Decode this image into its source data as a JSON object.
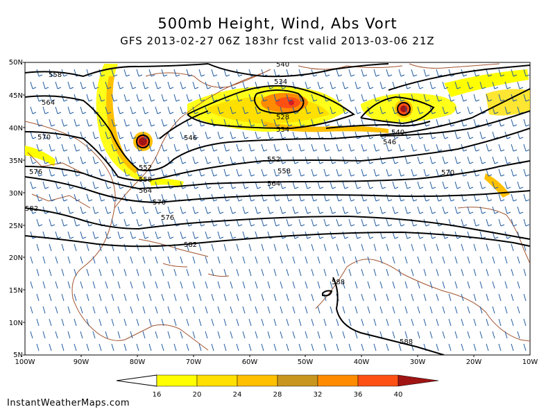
{
  "title": "500mb Height, Wind, Abs Vort",
  "subtitle": "GFS 2013-02-27 06Z 183hr fcst valid 2013-03-06 21Z",
  "footer": "InstantWeatherMaps.com",
  "lat_labels": [
    "50N",
    "45N",
    "40N",
    "35N",
    "30N",
    "25N",
    "20N",
    "15N",
    "10N",
    "5N"
  ],
  "lon_labels": [
    "100W",
    "90W",
    "80W",
    "70W",
    "60W",
    "50W",
    "40W",
    "30W",
    "20W",
    "10W"
  ],
  "height_contour_labels": [
    "558",
    "564",
    "570",
    "576",
    "582",
    "552",
    "558",
    "564",
    "570",
    "576",
    "582",
    "546",
    "552",
    "558",
    "564",
    "570",
    "528",
    "534",
    "540",
    "534",
    "540",
    "546",
    "588",
    "588"
  ],
  "colorbar": {
    "ticks": [
      "16",
      "20",
      "24",
      "28",
      "32",
      "36",
      "40"
    ],
    "colors": [
      "#ffff00",
      "#ffe000",
      "#ffc000",
      "#c8961e",
      "#ff8c00",
      "#ff5014",
      "#d21e1e",
      "#a01414"
    ]
  }
}
